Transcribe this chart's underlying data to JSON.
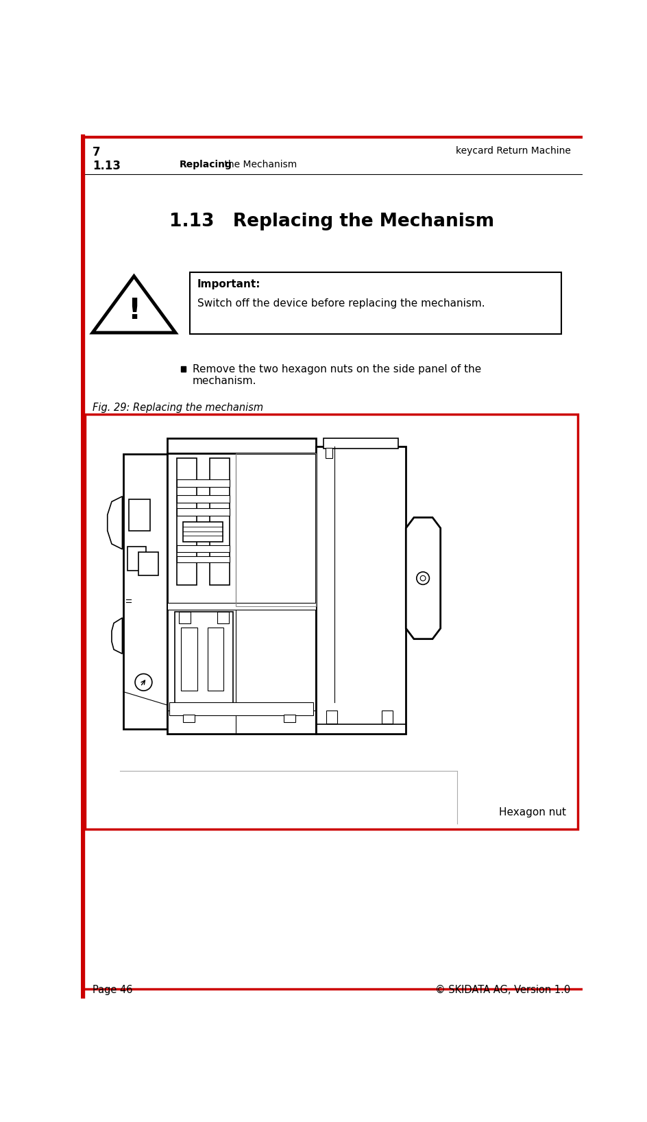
{
  "page_number": "7",
  "header_right": "keycard Return Machine",
  "header_section": "1.13",
  "header_section_text_bold": "Replacing",
  "header_section_text_normal": " the Mechanism",
  "main_title": "1.13   Replacing the Mechanism",
  "important_label": "Important:",
  "important_text": "Switch off the device before replacing the mechanism.",
  "bullet_text_line1": "Remove the two hexagon nuts on the side panel of the",
  "bullet_text_line2": "mechanism.",
  "fig_caption": "Fig. 29: Replacing the mechanism",
  "hexagon_nut_label": "Hexagon nut",
  "footer_left": "Page 46",
  "footer_right": "© SKIDATA AG, Version 1.0",
  "bg_color": "#ffffff",
  "header_line_color": "#cc0000",
  "fig_border_color": "#cc0000",
  "text_color": "#000000"
}
